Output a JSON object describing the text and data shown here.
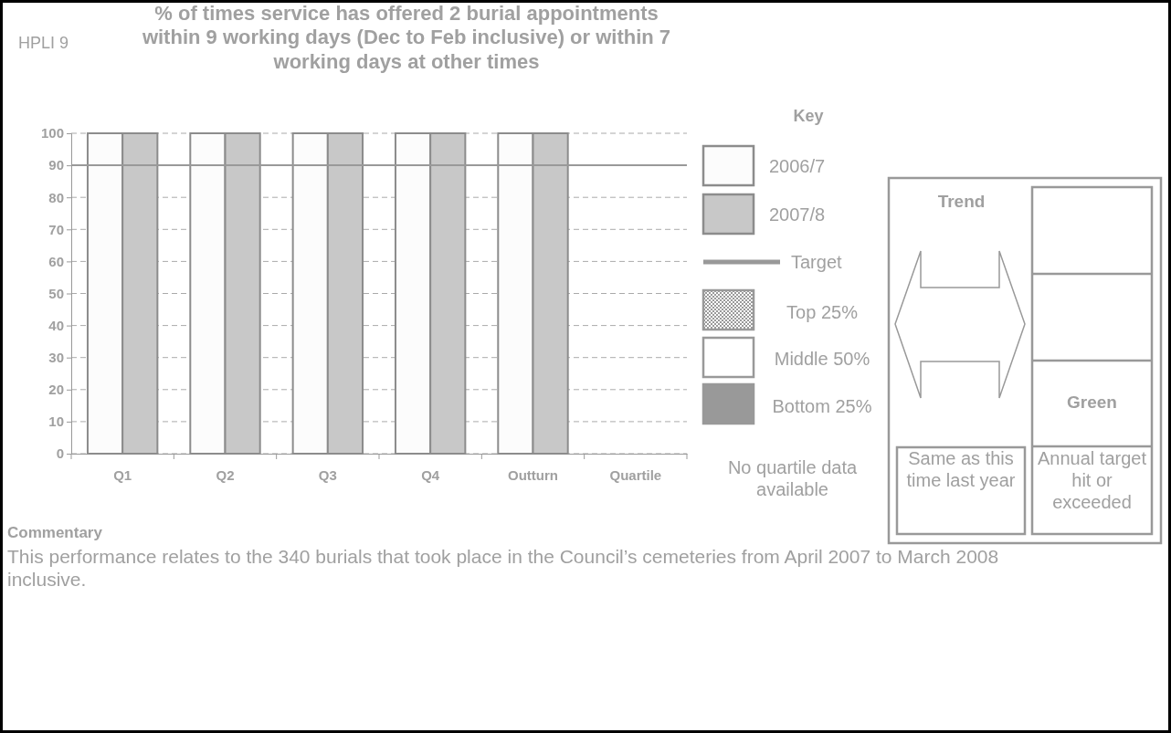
{
  "chart_data": {
    "type": "bar",
    "title": "% of times service has offered 2 burial appointments within 9 working days (Dec to Feb inclusive) or within 7 working days at other times",
    "categories": [
      "Q1",
      "Q2",
      "Q3",
      "Q4",
      "Outturn",
      "Quartile"
    ],
    "series": [
      {
        "name": "2006/7",
        "color": "#fcfcfc",
        "values": [
          100,
          100,
          100,
          100,
          100,
          null
        ]
      },
      {
        "name": "2007/8",
        "color": "#c8c8c8",
        "values": [
          100,
          100,
          100,
          100,
          100,
          null
        ]
      }
    ],
    "ylim": [
      0,
      100
    ],
    "yticks": [
      0,
      10,
      20,
      30,
      40,
      50,
      60,
      70,
      80,
      90,
      100
    ],
    "grid": "y",
    "line_style": "dashed",
    "ref_lines": [
      {
        "axis": "y",
        "value": 90,
        "label": "Target",
        "color": "#999999"
      }
    ],
    "legend": "right",
    "legend_title": "Key",
    "annotations": [
      "HPLI 9",
      "No quartile data available",
      "Trend",
      "Green",
      "Same as this time last year",
      "Annual target hit or exceeded",
      "Commentary",
      "This performance relates to the 340 burials that took place in the Council’s cemeteries from April 2007 to March 2008 inclusive.",
      "Top 25%",
      "Middle 50%",
      "Bottom 25%"
    ]
  }
}
